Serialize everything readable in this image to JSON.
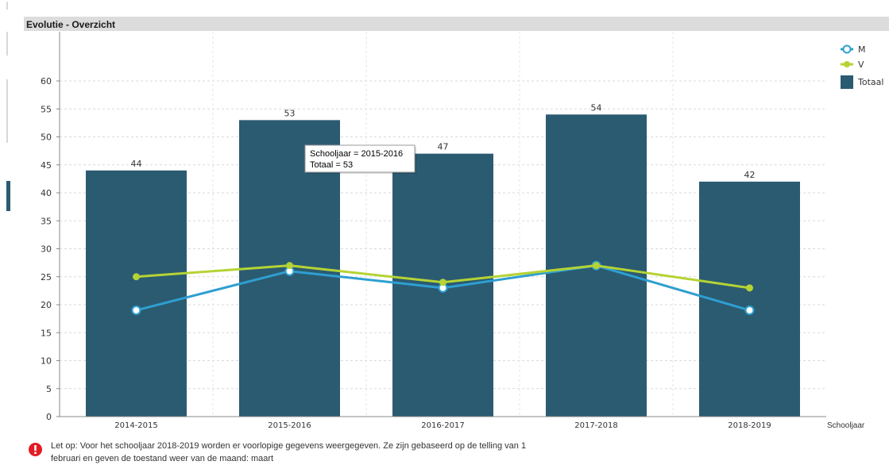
{
  "panel": {
    "title": "Evolutie - Overzicht"
  },
  "chart_data": {
    "type": "bar",
    "categories": [
      "2014-2015",
      "2015-2016",
      "2016-2017",
      "2017-2018",
      "2018-2019"
    ],
    "series": [
      {
        "name": "Totaal",
        "kind": "bar",
        "color": "#2b5b71",
        "values": [
          44,
          53,
          47,
          54,
          42
        ],
        "data_labels": [
          "44",
          "53",
          "47",
          "54",
          "42"
        ]
      },
      {
        "name": "M",
        "kind": "line",
        "marker": "open-circle",
        "color": "#2e9fd1",
        "values": [
          19,
          26,
          23,
          27,
          19
        ]
      },
      {
        "name": "V",
        "kind": "line",
        "marker": "filled-circle",
        "color": "#b5d334",
        "values": [
          25,
          27,
          24,
          27,
          23
        ]
      }
    ],
    "xlabel": "Schooljaar",
    "ylabel": "",
    "ylim": [
      0,
      60
    ],
    "yticks": [
      0,
      5,
      10,
      15,
      20,
      25,
      30,
      35,
      40,
      45,
      50,
      55,
      60
    ],
    "ytick_labels": [
      "0",
      "5",
      "10",
      "15",
      "20",
      "25",
      "30",
      "35",
      "40",
      "45",
      "50",
      "55",
      "60"
    ],
    "grid": true,
    "legend": {
      "position": "right",
      "entries": [
        "M",
        "V",
        "Totaal"
      ]
    },
    "tooltip": {
      "category_index": 1,
      "line1": "Schooljaar = 2015-2016",
      "line2": "Totaal = 53"
    }
  },
  "note": {
    "icon": "exclamation-circle-icon",
    "icon_color": "#e31b23",
    "line1": "Let op:  Voor het schooljaar 2018-2019 worden er voorlopige gegevens weergegeven. Ze zijn gebaseerd op de telling van 1",
    "line2": "februari en geven de toestand weer van de maand: maart"
  }
}
